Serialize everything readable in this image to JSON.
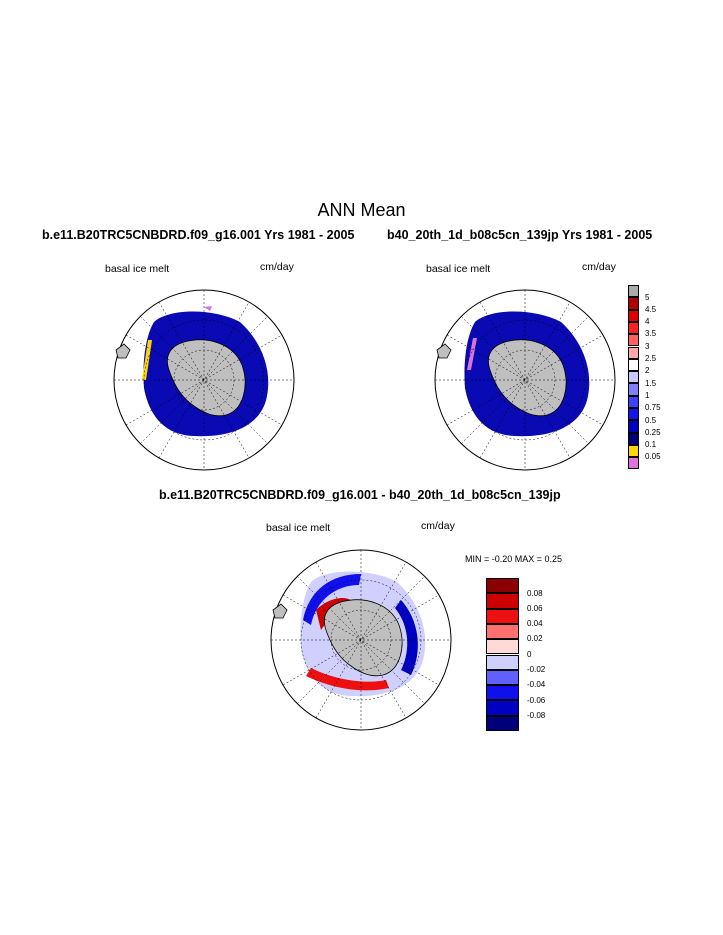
{
  "page": {
    "title": "ANN Mean",
    "case_a": "b.e11.B20TRC5CNBDRD.f09_g16.001  Yrs 1981 - 2005",
    "case_b": "b40_20th_1d_b08c5cn_139jp  Yrs 1981 - 2005",
    "diff_title": "b.e11.B20TRC5CNBDRD.f09_g16.001 - b40_20th_1d_b08c5cn_139jp"
  },
  "panels": {
    "a": {
      "variable": "basal ice melt",
      "units": "cm/day"
    },
    "b": {
      "variable": "basal ice melt",
      "units": "cm/day"
    },
    "diff": {
      "variable": "basal ice melt",
      "units": "cm/day",
      "stats": "MIN =  -0.20 MAX =   0.25"
    }
  },
  "legend_main": {
    "labels": [
      "5",
      "4.5",
      "4",
      "3.5",
      "3",
      "2.5",
      "2",
      "1.5",
      "1",
      "0.75",
      "0.5",
      "0.25",
      "0.1",
      "0.05"
    ],
    "colors": [
      "#aaaaaa",
      "#b00000",
      "#dd0000",
      "#ff2020",
      "#ff6060",
      "#ffa8a8",
      "#ffffff",
      "#c8c8ff",
      "#8080ff",
      "#4040ff",
      "#1414ee",
      "#0000c0",
      "#00007a",
      "#ffd700",
      "#e070e0"
    ]
  },
  "legend_diff": {
    "labels": [
      "0.08",
      "0.06",
      "0.04",
      "0.02",
      "0",
      "-0.02",
      "-0.04",
      "-0.06",
      "-0.08"
    ],
    "colors": [
      "#8b0000",
      "#cc0000",
      "#ee1010",
      "#ff7070",
      "#ffd8d8",
      "#d0d0ff",
      "#6060ff",
      "#1010ee",
      "#0000c0",
      "#00007a"
    ]
  },
  "colors": {
    "land": "#bfbfbf",
    "ocean_field": "#0a0ab4",
    "coast": "#000000"
  }
}
